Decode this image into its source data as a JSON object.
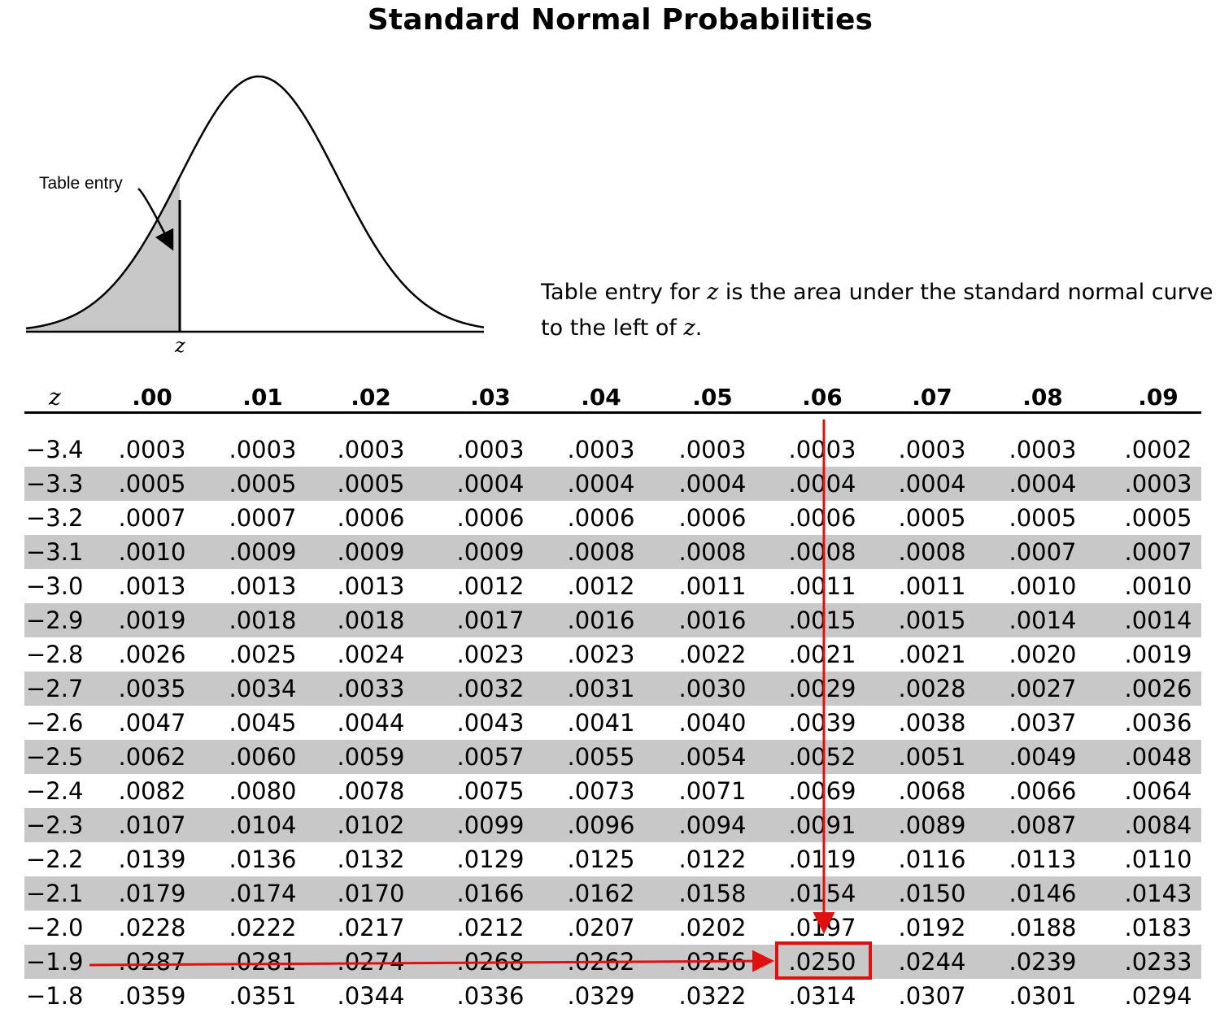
{
  "title": "Standard Normal Probabilities",
  "figure": {
    "table_entry_label": "Table entry",
    "z_label": "z"
  },
  "caption": {
    "line1_prefix": "Table entry for ",
    "line1_z": "z",
    "line1_suffix": " is the area under the standard normal curve",
    "line2_prefix": "to the left of ",
    "line2_z": "z",
    "line2_suffix": "."
  },
  "table": {
    "z_header": "z",
    "columns": [
      ".00",
      ".01",
      ".02",
      ".03",
      ".04",
      ".05",
      ".06",
      ".07",
      ".08",
      ".09"
    ],
    "rows": [
      {
        "z": "−3.4",
        "values": [
          ".0003",
          ".0003",
          ".0003",
          ".0003",
          ".0003",
          ".0003",
          ".0003",
          ".0003",
          ".0003",
          ".0002"
        ]
      },
      {
        "z": "−3.3",
        "values": [
          ".0005",
          ".0005",
          ".0005",
          ".0004",
          ".0004",
          ".0004",
          ".0004",
          ".0004",
          ".0004",
          ".0003"
        ]
      },
      {
        "z": "−3.2",
        "values": [
          ".0007",
          ".0007",
          ".0006",
          ".0006",
          ".0006",
          ".0006",
          ".0006",
          ".0005",
          ".0005",
          ".0005"
        ]
      },
      {
        "z": "−3.1",
        "values": [
          ".0010",
          ".0009",
          ".0009",
          ".0009",
          ".0008",
          ".0008",
          ".0008",
          ".0008",
          ".0007",
          ".0007"
        ]
      },
      {
        "z": "−3.0",
        "values": [
          ".0013",
          ".0013",
          ".0013",
          ".0012",
          ".0012",
          ".0011",
          ".0011",
          ".0011",
          ".0010",
          ".0010"
        ]
      },
      {
        "z": "−2.9",
        "values": [
          ".0019",
          ".0018",
          ".0018",
          ".0017",
          ".0016",
          ".0016",
          ".0015",
          ".0015",
          ".0014",
          ".0014"
        ]
      },
      {
        "z": "−2.8",
        "values": [
          ".0026",
          ".0025",
          ".0024",
          ".0023",
          ".0023",
          ".0022",
          ".0021",
          ".0021",
          ".0020",
          ".0019"
        ]
      },
      {
        "z": "−2.7",
        "values": [
          ".0035",
          ".0034",
          ".0033",
          ".0032",
          ".0031",
          ".0030",
          ".0029",
          ".0028",
          ".0027",
          ".0026"
        ]
      },
      {
        "z": "−2.6",
        "values": [
          ".0047",
          ".0045",
          ".0044",
          ".0043",
          ".0041",
          ".0040",
          ".0039",
          ".0038",
          ".0037",
          ".0036"
        ]
      },
      {
        "z": "−2.5",
        "values": [
          ".0062",
          ".0060",
          ".0059",
          ".0057",
          ".0055",
          ".0054",
          ".0052",
          ".0051",
          ".0049",
          ".0048"
        ]
      },
      {
        "z": "−2.4",
        "values": [
          ".0082",
          ".0080",
          ".0078",
          ".0075",
          ".0073",
          ".0071",
          ".0069",
          ".0068",
          ".0066",
          ".0064"
        ]
      },
      {
        "z": "−2.3",
        "values": [
          ".0107",
          ".0104",
          ".0102",
          ".0099",
          ".0096",
          ".0094",
          ".0091",
          ".0089",
          ".0087",
          ".0084"
        ]
      },
      {
        "z": "−2.2",
        "values": [
          ".0139",
          ".0136",
          ".0132",
          ".0129",
          ".0125",
          ".0122",
          ".0119",
          ".0116",
          ".0113",
          ".0110"
        ]
      },
      {
        "z": "−2.1",
        "values": [
          ".0179",
          ".0174",
          ".0170",
          ".0166",
          ".0162",
          ".0158",
          ".0154",
          ".0150",
          ".0146",
          ".0143"
        ]
      },
      {
        "z": "−2.0",
        "values": [
          ".0228",
          ".0222",
          ".0217",
          ".0212",
          ".0207",
          ".0202",
          ".0197",
          ".0192",
          ".0188",
          ".0183"
        ]
      },
      {
        "z": "−1.9",
        "values": [
          ".0287",
          ".0281",
          ".0274",
          ".0268",
          ".0262",
          ".0256",
          ".0250",
          ".0244",
          ".0239",
          ".0233"
        ]
      },
      {
        "z": "−1.8",
        "values": [
          ".0359",
          ".0351",
          ".0344",
          ".0336",
          ".0329",
          ".0322",
          ".0314",
          ".0307",
          ".0301",
          ".0294"
        ]
      }
    ]
  },
  "highlight": {
    "row_z": "−1.9",
    "column": ".06",
    "value": ".0250",
    "color": "#e01010"
  },
  "colors": {
    "shade": "#c8c8c8",
    "curve_fill": "#c8c8c8"
  }
}
